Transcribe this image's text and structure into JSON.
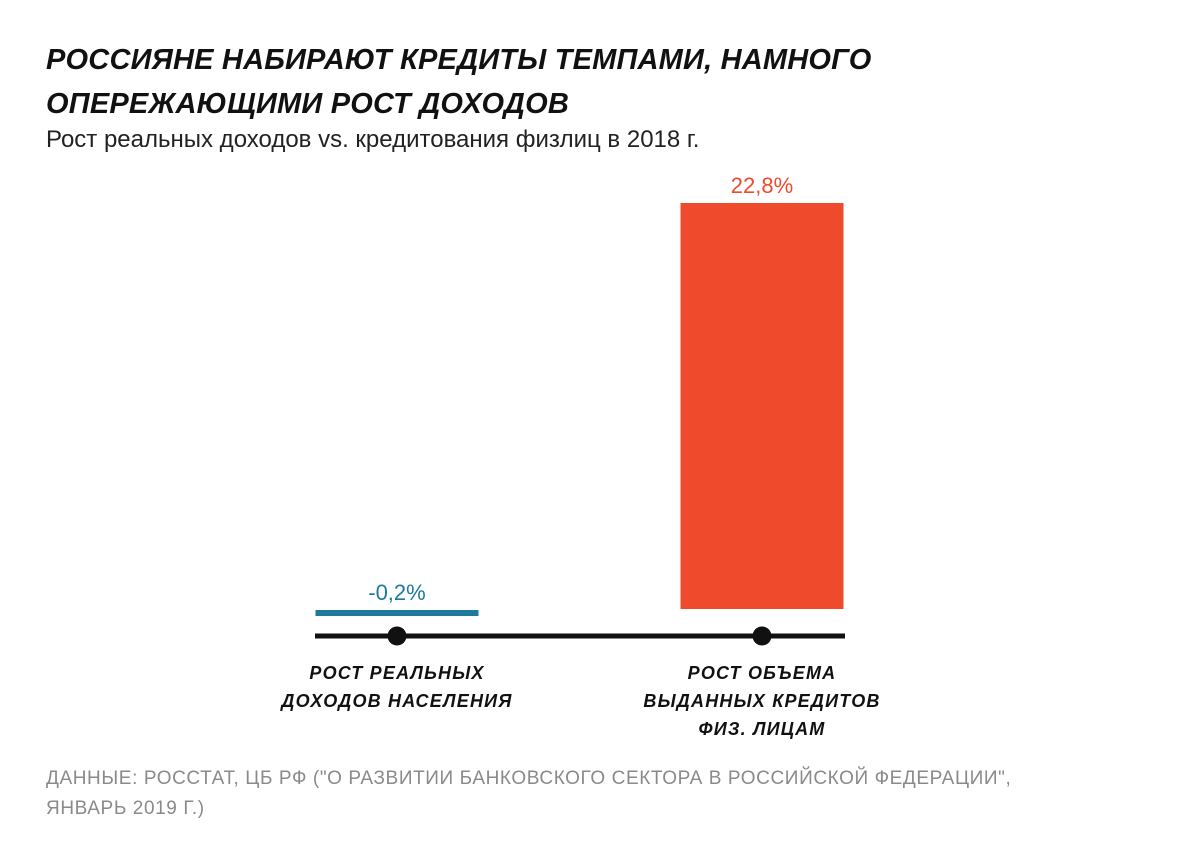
{
  "header": {
    "title_line1": "РОССИЯНЕ НАБИРАЮТ КРЕДИТЫ ТЕМПАМИ, НАМНОГО",
    "title_line2": "ОПЕРЕЖАЮЩИМИ РОСТ ДОХОДОВ",
    "subtitle": "Рост реальных доходов vs. кредитования физлиц в 2018 г."
  },
  "source": {
    "line1": "ДАННЫЕ: РОССТАТ, ЦБ РФ (\"О РАЗВИТИИ БАНКОВСКОГО СЕКТОРА В РОССИЙСКОЙ ФЕДЕРАЦИИ\",",
    "line2": "ЯНВАРЬ 2019 Г.)"
  },
  "chart_data": {
    "type": "bar",
    "title": "РОССИЯНЕ НАБИРАЮТ КРЕДИТЫ ТЕМПАМИ, НАМНОГО ОПЕРЕЖАЮЩИМИ РОСТ ДОХОДОВ",
    "subtitle": "Рост реальных доходов vs. кредитования физлиц в 2018 г.",
    "categories": [
      [
        "РОСТ РЕАЛЬНЫХ",
        "ДОХОДОВ НАСЕЛЕНИЯ"
      ],
      [
        "РОСТ ОБЪЕМА",
        "ВЫДАННЫХ КРЕДИТОВ",
        "ФИЗ. ЛИЦАМ"
      ]
    ],
    "values": [
      -0.2,
      22.8
    ],
    "value_labels": [
      "-0,2%",
      "22,8%"
    ],
    "colors": [
      "#1d7a9a",
      "#f04a2c"
    ],
    "axis_color": "#111111",
    "unit": "%",
    "ylim": [
      0,
      22.8
    ],
    "grid": false,
    "legend": "none"
  }
}
